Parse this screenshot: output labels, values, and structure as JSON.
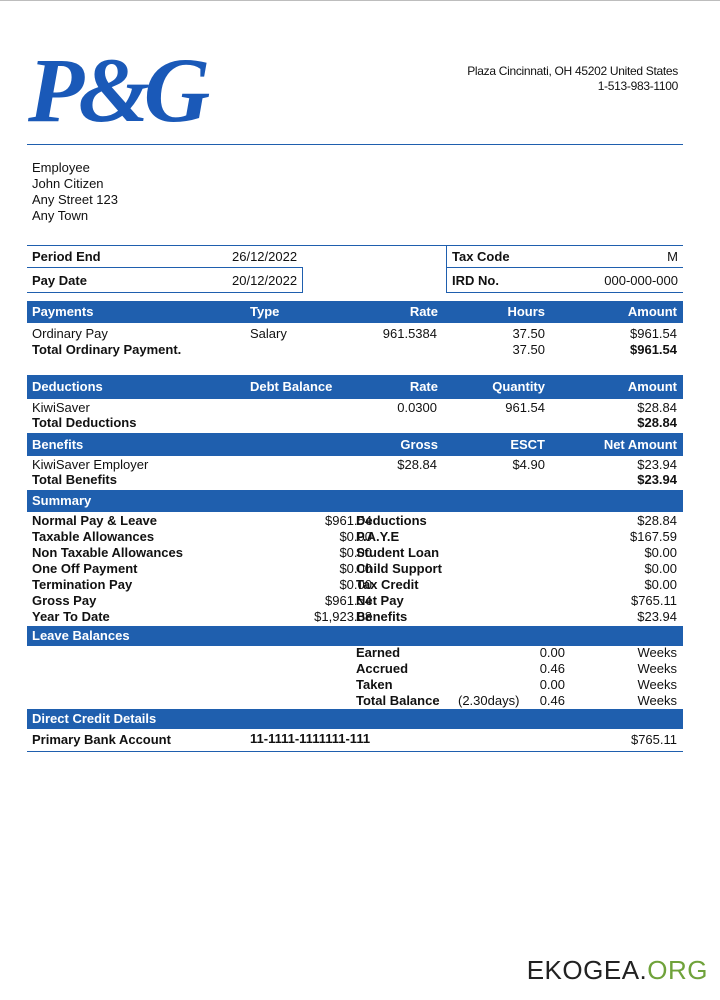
{
  "brand": {
    "logo_text": "P&G"
  },
  "company": {
    "address": "Plaza Cincinnati, OH 45202 United States",
    "phone": "1-513-983-1100"
  },
  "employee": {
    "label": "Employee",
    "name": "John Citizen",
    "street": "Any Street 123",
    "town": "Any Town"
  },
  "period": {
    "period_end_label": "Period End",
    "period_end": "26/12/2022",
    "pay_date_label": "Pay Date",
    "pay_date": "20/12/2022",
    "tax_code_label": "Tax Code",
    "tax_code": "M",
    "ird_label": "IRD No.",
    "ird": "000-000-000"
  },
  "payments": {
    "headers": [
      "Payments",
      "Type",
      "Rate",
      "Hours",
      "Amount"
    ],
    "row": {
      "name": "Ordinary Pay",
      "type": "Salary",
      "rate": "961.5384",
      "hours": "37.50",
      "amount": "$961.54"
    },
    "total": {
      "name": "Total Ordinary Payment.",
      "hours": "37.50",
      "amount": "$961.54"
    }
  },
  "deductions": {
    "headers": [
      "Deductions",
      "Debt Balance",
      "Rate",
      "Quantity",
      "Amount"
    ],
    "row": {
      "name": "KiwiSaver",
      "rate": "0.0300",
      "quantity": "961.54",
      "amount": "$28.84"
    },
    "total": {
      "name": "Total Deductions",
      "amount": "$28.84"
    }
  },
  "benefits": {
    "headers": [
      "Benefits",
      "Gross",
      "ESCT",
      "Net Amount"
    ],
    "row": {
      "name": "KiwiSaver Employer",
      "gross": "$28.84",
      "esct": "$4.90",
      "net": "$23.94"
    },
    "total": {
      "name": "Total Benefits",
      "net": "$23.94"
    }
  },
  "summary": {
    "title": "Summary",
    "left": [
      {
        "label": "Normal Pay & Leave",
        "value": "$961.54"
      },
      {
        "label": "Taxable Allowances",
        "value": "$0.00"
      },
      {
        "label": "Non Taxable Allowances",
        "value": "$0.00"
      },
      {
        "label": "One Off Payment",
        "value": "$0.00"
      },
      {
        "label": "Termination Pay",
        "value": "$0.00"
      },
      {
        "label": "Gross Pay",
        "value": "$961.54"
      },
      {
        "label": "Year To Date",
        "value": "$1,923.08"
      }
    ],
    "right": [
      {
        "label": "Deductions",
        "value": "$28.84"
      },
      {
        "label": "P.A.Y.E",
        "value": "$167.59"
      },
      {
        "label": "Student Loan",
        "value": "$0.00"
      },
      {
        "label": "Child Support",
        "value": "$0.00"
      },
      {
        "label": "Tax Credit",
        "value": "$0.00"
      },
      {
        "label": "Net Pay",
        "value": "$765.11"
      },
      {
        "label": "Benefits",
        "value": "$23.94"
      }
    ]
  },
  "leave": {
    "title": "Leave Balances",
    "rows": [
      {
        "label": "Earned",
        "extra": "",
        "value": "0.00",
        "unit": "Weeks"
      },
      {
        "label": "Accrued",
        "extra": "",
        "value": "0.46",
        "unit": "Weeks"
      },
      {
        "label": "Taken",
        "extra": "",
        "value": "0.00",
        "unit": "Weeks"
      },
      {
        "label": "Total Balance",
        "extra": "(2.30days)",
        "value": "0.46",
        "unit": "Weeks"
      }
    ]
  },
  "direct_credit": {
    "title": "Direct Credit Details",
    "label": "Primary Bank Account",
    "account": "11-1111-1111111-111",
    "amount": "$765.11"
  },
  "watermark": {
    "main": "EKOGEA.",
    "org": "ORG"
  }
}
